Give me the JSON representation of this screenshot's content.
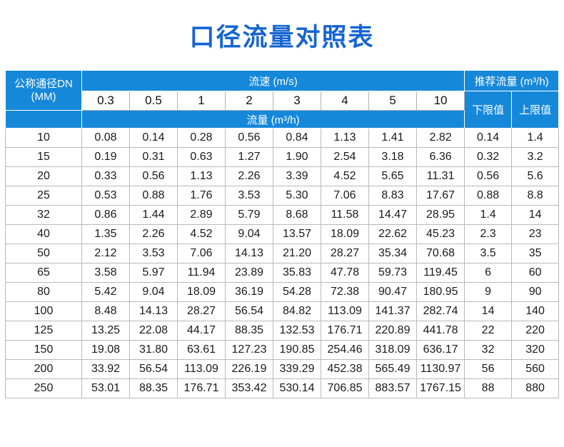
{
  "colors": {
    "title_blue": "#1565d1",
    "header_blue": "#1688da"
  },
  "chart_data": {
    "type": "table",
    "title": "口径流量对照表",
    "header": {
      "dn_label": "公称通径DN",
      "dn_unit": "(MM)",
      "velocity_group_label": "流速 (m/s)",
      "velocity_columns": [
        "0.3",
        "0.5",
        "1",
        "2",
        "3",
        "4",
        "5",
        "10"
      ],
      "flow_row_label": "流量 (m³/h)",
      "recommended_group_label": "推荐流量 (m³/h)",
      "lower_limit_label": "下限值",
      "upper_limit_label": "上限值"
    },
    "rows": [
      {
        "dn": "10",
        "flows": [
          "0.08",
          "0.14",
          "0.28",
          "0.56",
          "0.84",
          "1.13",
          "1.41",
          "2.82"
        ],
        "lower": "0.14",
        "upper": "1.4"
      },
      {
        "dn": "15",
        "flows": [
          "0.19",
          "0.31",
          "0.63",
          "1.27",
          "1.90",
          "2.54",
          "3.18",
          "6.36"
        ],
        "lower": "0.32",
        "upper": "3.2"
      },
      {
        "dn": "20",
        "flows": [
          "0.33",
          "0.56",
          "1.13",
          "2.26",
          "3.39",
          "4.52",
          "5.65",
          "11.31"
        ],
        "lower": "0.56",
        "upper": "5.6"
      },
      {
        "dn": "25",
        "flows": [
          "0.53",
          "0.88",
          "1.76",
          "3.53",
          "5.30",
          "7.06",
          "8.83",
          "17.67"
        ],
        "lower": "0.88",
        "upper": "8.8"
      },
      {
        "dn": "32",
        "flows": [
          "0.86",
          "1.44",
          "2.89",
          "5.79",
          "8.68",
          "11.58",
          "14.47",
          "28.95"
        ],
        "lower": "1.4",
        "upper": "14"
      },
      {
        "dn": "40",
        "flows": [
          "1.35",
          "2.26",
          "4.52",
          "9.04",
          "13.57",
          "18.09",
          "22.62",
          "45.23"
        ],
        "lower": "2.3",
        "upper": "23"
      },
      {
        "dn": "50",
        "flows": [
          "2.12",
          "3.53",
          "7.06",
          "14.13",
          "21.20",
          "28.27",
          "35.34",
          "70.68"
        ],
        "lower": "3.5",
        "upper": "35"
      },
      {
        "dn": "65",
        "flows": [
          "3.58",
          "5.97",
          "11.94",
          "23.89",
          "35.83",
          "47.78",
          "59.73",
          "119.45"
        ],
        "lower": "6",
        "upper": "60"
      },
      {
        "dn": "80",
        "flows": [
          "5.42",
          "9.04",
          "18.09",
          "36.19",
          "54.28",
          "72.38",
          "90.47",
          "180.95"
        ],
        "lower": "9",
        "upper": "90"
      },
      {
        "dn": "100",
        "flows": [
          "8.48",
          "14.13",
          "28.27",
          "56.54",
          "84.82",
          "113.09",
          "141.37",
          "282.74"
        ],
        "lower": "14",
        "upper": "140"
      },
      {
        "dn": "125",
        "flows": [
          "13.25",
          "22.08",
          "44.17",
          "88.35",
          "132.53",
          "176.71",
          "220.89",
          "441.78"
        ],
        "lower": "22",
        "upper": "220"
      },
      {
        "dn": "150",
        "flows": [
          "19.08",
          "31.80",
          "63.61",
          "127.23",
          "190.85",
          "254.46",
          "318.09",
          "636.17"
        ],
        "lower": "32",
        "upper": "320"
      },
      {
        "dn": "200",
        "flows": [
          "33.92",
          "56.54",
          "113.09",
          "226.19",
          "339.29",
          "452.38",
          "565.49",
          "1130.97"
        ],
        "lower": "56",
        "upper": "560"
      },
      {
        "dn": "250",
        "flows": [
          "53.01",
          "88.35",
          "176.71",
          "353.42",
          "530.14",
          "706.85",
          "883.57",
          "1767.15"
        ],
        "lower": "88",
        "upper": "880"
      }
    ]
  }
}
